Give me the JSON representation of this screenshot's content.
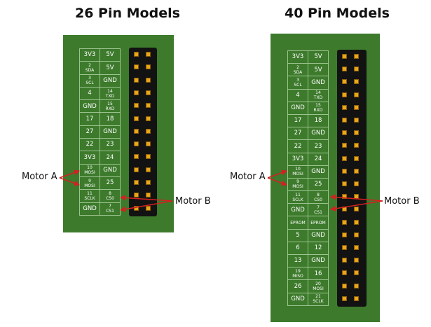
{
  "titles": {
    "left": "26 Pin Models",
    "right": "40 Pin Models"
  },
  "labels": {
    "motor_a": "Motor A",
    "motor_b": "Motor B"
  },
  "colors": {
    "board": "#3d7a2c",
    "header": "#121212",
    "pin": "#e8a61c",
    "arrow": "#d42020"
  },
  "models": [
    {
      "pins": 26,
      "rows": [
        [
          "3V3",
          "5V"
        ],
        [
          "2\nSDA",
          "5V"
        ],
        [
          "3\nSCL",
          "GND"
        ],
        [
          "4",
          "14\nTXD"
        ],
        [
          "GND",
          "15\nRXD"
        ],
        [
          "17",
          "18"
        ],
        [
          "27",
          "GND"
        ],
        [
          "22",
          "23"
        ],
        [
          "3V3",
          "24"
        ],
        [
          "10\nMOSI",
          "GND"
        ],
        [
          "9\nMOSI",
          "25"
        ],
        [
          "11\nSCLK",
          "8\nCS0"
        ],
        [
          "GND",
          "7\nCS1"
        ]
      ]
    },
    {
      "pins": 40,
      "rows": [
        [
          "3V3",
          "5V"
        ],
        [
          "2\nSDA",
          "5V"
        ],
        [
          "3\nSCL",
          "GND"
        ],
        [
          "4",
          "14\nTXD"
        ],
        [
          "GND",
          "15\nRXD"
        ],
        [
          "17",
          "18"
        ],
        [
          "27",
          "GND"
        ],
        [
          "22",
          "23"
        ],
        [
          "3V3",
          "24"
        ],
        [
          "10\nMOSI",
          "GND"
        ],
        [
          "9\nMOSI",
          "25"
        ],
        [
          "11\nSCLK",
          "8\nCS0"
        ],
        [
          "GND",
          "7\nCS1"
        ],
        [
          "EPROM",
          "EPROM"
        ],
        [
          "5",
          "GND"
        ],
        [
          "6",
          "12"
        ],
        [
          "13",
          "GND"
        ],
        [
          "19\nMISO",
          "16"
        ],
        [
          "26",
          "20\nMOSI"
        ],
        [
          "GND",
          "21\nSCLK"
        ]
      ]
    }
  ]
}
